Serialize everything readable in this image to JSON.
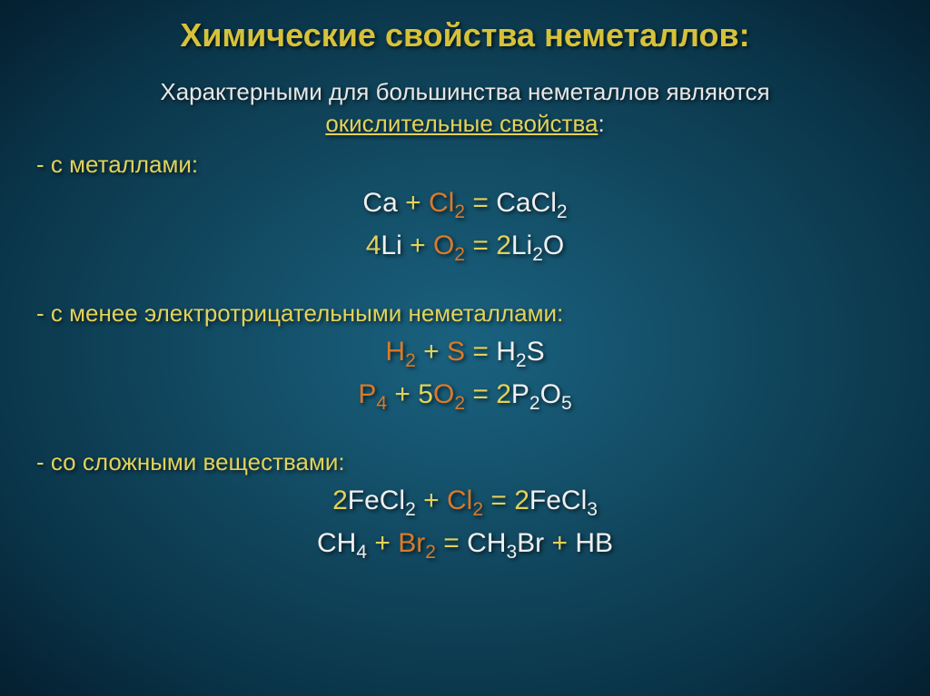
{
  "colors": {
    "title": "#d6c23a",
    "subtitle_text": "#e7e7e7",
    "subtitle_accent": "#e2d25a",
    "label": "#e2d25a",
    "eq_white": "#f0f0f0",
    "eq_yellow": "#e2d25a",
    "eq_orange": "#d97a2a"
  },
  "title": "Химические свойства неметаллов:",
  "subtitle": {
    "line1": "Характерными для большинства неметаллов являются",
    "line2_accent": "окислительные свойства",
    "line2_tail": ":"
  },
  "sections": [
    {
      "label": "- с металлами:",
      "equations": [
        [
          {
            "t": "Ca ",
            "c": "eq_white"
          },
          {
            "t": "+ ",
            "c": "eq_yellow"
          },
          {
            "t": "Cl",
            "c": "eq_orange"
          },
          {
            "t": "2",
            "c": "eq_orange",
            "sub": true
          },
          {
            "t": " = ",
            "c": "eq_yellow"
          },
          {
            "t": "CaCl",
            "c": "eq_white"
          },
          {
            "t": "2",
            "c": "eq_white",
            "sub": true
          }
        ],
        [
          {
            "t": "4",
            "c": "eq_yellow"
          },
          {
            "t": "Li ",
            "c": "eq_white"
          },
          {
            "t": "+ ",
            "c": "eq_yellow"
          },
          {
            "t": "O",
            "c": "eq_orange"
          },
          {
            "t": "2",
            "c": "eq_orange",
            "sub": true
          },
          {
            "t": " = ",
            "c": "eq_yellow"
          },
          {
            "t": "2",
            "c": "eq_yellow"
          },
          {
            "t": "Li",
            "c": "eq_white"
          },
          {
            "t": "2",
            "c": "eq_white",
            "sub": true
          },
          {
            "t": "O",
            "c": "eq_white"
          }
        ]
      ]
    },
    {
      "label": "- с менее электротрицательными неметаллами:",
      "gap_before": 36,
      "equations": [
        [
          {
            "t": "H",
            "c": "eq_orange"
          },
          {
            "t": "2",
            "c": "eq_orange",
            "sub": true
          },
          {
            "t": " + ",
            "c": "eq_yellow"
          },
          {
            "t": "S",
            "c": "eq_orange"
          },
          {
            "t": " = ",
            "c": "eq_yellow"
          },
          {
            "t": "H",
            "c": "eq_white"
          },
          {
            "t": "2",
            "c": "eq_white",
            "sub": true
          },
          {
            "t": "S",
            "c": "eq_white"
          }
        ],
        [
          {
            "t": "P",
            "c": "eq_orange"
          },
          {
            "t": "4",
            "c": "eq_orange",
            "sub": true
          },
          {
            "t": " + ",
            "c": "eq_yellow"
          },
          {
            "t": "5",
            "c": "eq_yellow"
          },
          {
            "t": "O",
            "c": "eq_orange"
          },
          {
            "t": "2",
            "c": "eq_orange",
            "sub": true
          },
          {
            "t": " = ",
            "c": "eq_yellow"
          },
          {
            "t": "2",
            "c": "eq_yellow"
          },
          {
            "t": "P",
            "c": "eq_white"
          },
          {
            "t": "2",
            "c": "eq_white",
            "sub": true
          },
          {
            "t": "O",
            "c": "eq_white"
          },
          {
            "t": "5",
            "c": "eq_white",
            "sub": true
          }
        ]
      ]
    },
    {
      "label": "- со сложными веществами:",
      "gap_before": 36,
      "equations": [
        [
          {
            "t": "2",
            "c": "eq_yellow"
          },
          {
            "t": "FeCl",
            "c": "eq_white"
          },
          {
            "t": "2",
            "c": "eq_white",
            "sub": true
          },
          {
            "t": " + ",
            "c": "eq_yellow"
          },
          {
            "t": "Cl",
            "c": "eq_orange"
          },
          {
            "t": "2",
            "c": "eq_orange",
            "sub": true
          },
          {
            "t": " = ",
            "c": "eq_yellow"
          },
          {
            "t": "2",
            "c": "eq_yellow"
          },
          {
            "t": "FeCl",
            "c": "eq_white"
          },
          {
            "t": "3",
            "c": "eq_white",
            "sub": true
          }
        ],
        [
          {
            "t": "CH",
            "c": "eq_white"
          },
          {
            "t": "4",
            "c": "eq_white",
            "sub": true
          },
          {
            "t": " + ",
            "c": "eq_yellow"
          },
          {
            "t": "Br",
            "c": "eq_orange"
          },
          {
            "t": "2",
            "c": "eq_orange",
            "sub": true
          },
          {
            "t": " = ",
            "c": "eq_yellow"
          },
          {
            "t": "CH",
            "c": "eq_white"
          },
          {
            "t": "3",
            "c": "eq_white",
            "sub": true
          },
          {
            "t": "Br ",
            "c": "eq_white"
          },
          {
            "t": "+ ",
            "c": "eq_yellow"
          },
          {
            "t": "HB",
            "c": "eq_white"
          }
        ]
      ]
    }
  ]
}
